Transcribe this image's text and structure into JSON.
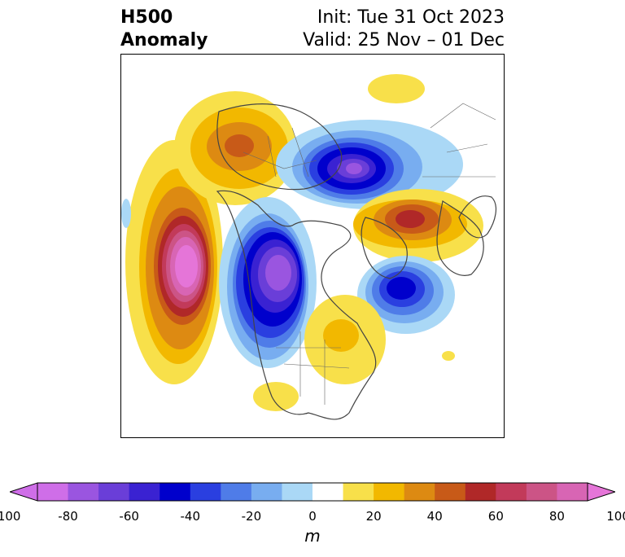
{
  "title": {
    "left_line1": "H500",
    "left_line2": "Anomaly",
    "right_line1": "Init: Tue 31 Oct 2023",
    "right_line2": "Valid: 25 Nov – 01 Dec"
  },
  "colorbar": {
    "unit": "m",
    "ticks": [
      "-100",
      "-80",
      "-60",
      "-40",
      "-20",
      "0",
      "20",
      "40",
      "60",
      "80",
      "100"
    ],
    "colors": [
      "#cf6ee8",
      "#9a55e0",
      "#6a3ed8",
      "#3a22d2",
      "#0000cc",
      "#2a3fe0",
      "#4f7ce8",
      "#78adf0",
      "#aad8f6",
      "#ffffff",
      "#f8e04a",
      "#f2b800",
      "#dd8a12",
      "#c85a18",
      "#b02828",
      "#c23a5a",
      "#cc5486",
      "#d865b4",
      "#e575d8"
    ],
    "min": -100,
    "max": 100,
    "interval": 10,
    "extend": "both"
  }
}
